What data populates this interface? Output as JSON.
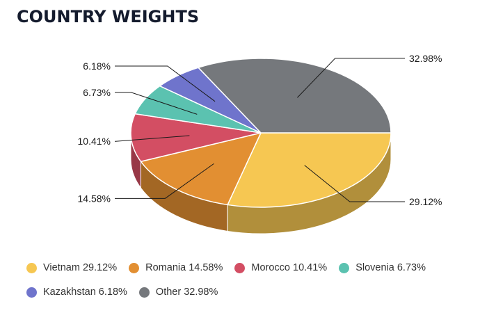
{
  "title": "COUNTRY WEIGHTS",
  "chart_data": {
    "type": "pie",
    "title": "COUNTRY WEIGHTS",
    "style": "3d",
    "labels": [
      "Vietnam",
      "Romania",
      "Morocco",
      "Slovenia",
      "Kazakhstan",
      "Other"
    ],
    "values": [
      29.12,
      14.58,
      10.41,
      6.73,
      6.18,
      32.98
    ],
    "value_labels": [
      "29.12%",
      "14.58%",
      "10.41%",
      "6.73%",
      "6.18%",
      "32.98%"
    ],
    "legend_labels": [
      "Vietnam 29.12%",
      "Romania 14.58%",
      "Morocco 10.41%",
      "Slovenia 6.73%",
      "Kazakhstan 6.18%",
      "Other 32.98%"
    ],
    "colors": [
      "#f6c752",
      "#e28f32",
      "#d34e63",
      "#5bc2b0",
      "#6f74cc",
      "#75787c"
    ],
    "legend": "bottom"
  }
}
